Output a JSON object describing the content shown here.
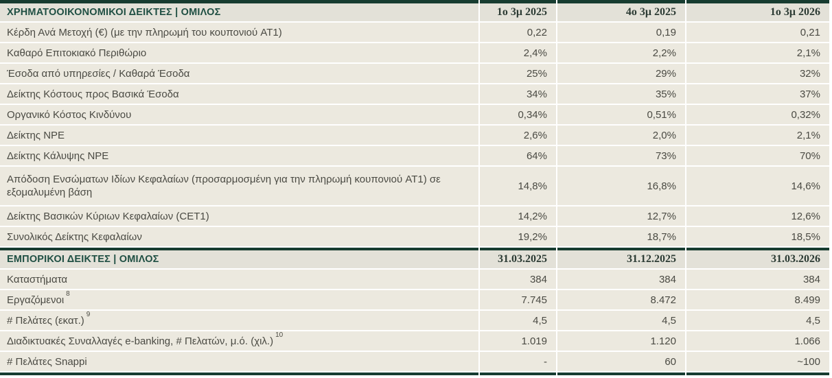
{
  "table": {
    "colors": {
      "accent_dark_green": "#173c30",
      "header_text_green": "#1f4f43",
      "header_band_bg": "#e3e1d8",
      "row_bg": "#ece9df",
      "body_text": "#4a4a43",
      "date_text": "#2c3b34"
    },
    "sections": [
      {
        "title": "ΧΡΗΜΑΤΟΟΙΚΟΝΟΜΙΚΟΙ ΔΕΙΚΤΕΣ | ΟΜΙΛΟΣ",
        "columns": [
          "1ο 3μ 2025",
          "4ο 3μ 2025",
          "1ο 3μ 2026"
        ],
        "rows": [
          {
            "label": "Κέρδη Ανά Μετοχή (€) (με την πληρωμή του κουπονιού AT1)",
            "values": [
              "0,22",
              "0,19",
              "0,21"
            ]
          },
          {
            "label": "Καθαρό Επιτοκιακό Περιθώριο",
            "values": [
              "2,4%",
              "2,2%",
              "2,1%"
            ]
          },
          {
            "label": "Έσοδα από υπηρεσίες / Καθαρά Έσοδα",
            "values": [
              "25%",
              "29%",
              "32%"
            ]
          },
          {
            "label": "Δείκτης Κόστους προς Βασικά  Έσοδα",
            "values": [
              "34%",
              "35%",
              "37%"
            ]
          },
          {
            "label": "Οργανικό Κόστος Κινδύνου",
            "values": [
              "0,34%",
              "0,51%",
              "0,32%"
            ]
          },
          {
            "label": "Δείκτης NPE",
            "values": [
              "2,6%",
              "2,0%",
              "2,1%"
            ]
          },
          {
            "label": "Δείκτης Κάλυψης NPE",
            "values": [
              "64%",
              "73%",
              "70%"
            ]
          },
          {
            "label": "Απόδοση Ενσώματων Ιδίων Κεφαλαίων (προσαρμοσμένη για την πληρωμή κουπονιού AT1) σε εξομαλυμένη βάση",
            "tall": true,
            "values": [
              "14,8%",
              "16,8%",
              "14,6%"
            ]
          },
          {
            "label": "Δείκτης Βασικών Κύριων Κεφαλαίων (CET1)",
            "values": [
              "14,2%",
              "12,7%",
              "12,6%"
            ]
          },
          {
            "label": "Συνολικός Δείκτης Κεφαλαίων",
            "values": [
              "19,2%",
              "18,7%",
              "18,5%"
            ]
          }
        ]
      },
      {
        "title": "ΕΜΠΟΡΙΚΟΙ ΔΕΙΚΤΕΣ | ΟΜΙΛΟΣ",
        "columns": [
          "31.03.2025",
          "31.12.2025",
          "31.03.2026"
        ],
        "rows": [
          {
            "label": "Καταστήματα",
            "values": [
              "384",
              "384",
              "384"
            ]
          },
          {
            "label": "Εργαζόμενοι",
            "footnote": "8",
            "values": [
              "7.745",
              "8.472",
              "8.499"
            ]
          },
          {
            "label": "# Πελάτες (εκατ.)",
            "footnote": "9",
            "values": [
              "4,5",
              "4,5",
              "4,5"
            ]
          },
          {
            "label": "Διαδικτυακές Συναλλαγές e-banking, # Πελατών, μ.ό. (χιλ.)",
            "footnote": "10",
            "values": [
              "1.019",
              "1.120",
              "1.066"
            ]
          },
          {
            "label": "# Πελάτες Snappi",
            "values": [
              "-",
              "60",
              "~100"
            ]
          }
        ]
      }
    ]
  }
}
